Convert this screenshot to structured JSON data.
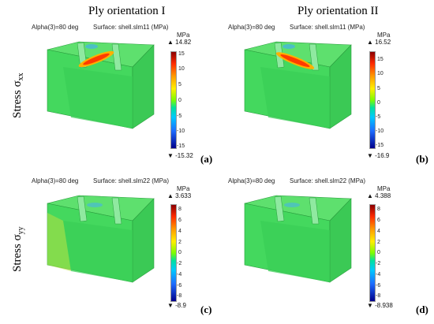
{
  "columns": [
    "Ply orientation I",
    "Ply orientation II"
  ],
  "rows": [
    {
      "label": "Stress σ",
      "sub": "xx"
    },
    {
      "label": "Stress σ",
      "sub": "yy"
    }
  ],
  "panels": [
    {
      "id": "a",
      "label": "(a)",
      "alpha": "Alpha(3)=80 deg",
      "surface": "Surface: shell.slm11 (MPa)",
      "unit": "MPa",
      "max": "14.82",
      "min": "-15.32",
      "ticks": [
        "15",
        "10",
        "5",
        "0",
        "-5",
        "-10",
        "-15"
      ]
    },
    {
      "id": "b",
      "label": "(b)",
      "alpha": "Alpha(3)=80 deg",
      "surface": "Surface: shell.slm11 (MPa)",
      "unit": "MPa",
      "max": "16.52",
      "min": "-16.9",
      "ticks": [
        "15",
        "10",
        "5",
        "0",
        "-5",
        "-10",
        "-15"
      ]
    },
    {
      "id": "c",
      "label": "(c)",
      "alpha": "Alpha(3)=80 deg",
      "surface": "Surface: shell.slm22 (MPa)",
      "unit": "MPa",
      "max": "3.633",
      "min": "-8.9",
      "ticks": [
        "8",
        "6",
        "4",
        "2",
        "0",
        "-2",
        "-4",
        "-6",
        "-8"
      ]
    },
    {
      "id": "d",
      "label": "(d)",
      "alpha": "Alpha(3)=80 deg",
      "surface": "Surface: shell.slm22 (MPa)",
      "unit": "MPa",
      "max": "4.388",
      "min": "-8.938",
      "ticks": [
        "8",
        "6",
        "4",
        "2",
        "0",
        "-2",
        "-4",
        "-6",
        "-8"
      ]
    }
  ],
  "colors": {
    "shell_front": "#3fd65a",
    "shell_side": "#2ec44c",
    "shell_top": "#5ee06e",
    "hot": "#ff4500"
  }
}
